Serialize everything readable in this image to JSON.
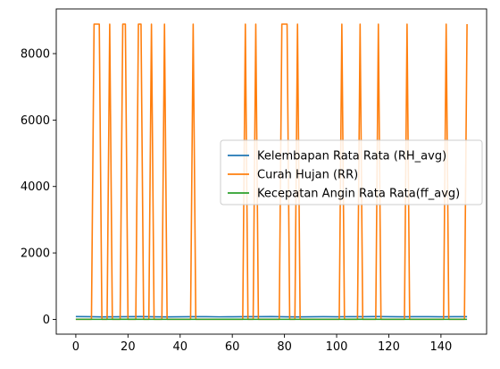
{
  "chart_data": {
    "type": "line",
    "xlim": [
      -7.5,
      157.5
    ],
    "ylim": [
      -445,
      9345
    ],
    "x_ticks": [
      0,
      20,
      40,
      60,
      80,
      100,
      120,
      140
    ],
    "y_ticks": [
      0,
      2000,
      4000,
      6000,
      8000
    ],
    "grid": false,
    "legend_placement": "center-right",
    "series": [
      {
        "name": "Kelembapan Rata Rata  (RH_avg)",
        "color": "#1f77b4",
        "x": [
          0,
          5,
          10,
          15,
          20,
          25,
          30,
          35,
          40,
          45,
          50,
          55,
          60,
          65,
          70,
          75,
          80,
          85,
          90,
          95,
          100,
          105,
          110,
          115,
          120,
          125,
          130,
          135,
          140,
          145,
          150
        ],
        "y": [
          85,
          82,
          75,
          78,
          80,
          84,
          77,
          74,
          78,
          82,
          80,
          76,
          78,
          82,
          80,
          84,
          78,
          75,
          77,
          80,
          78,
          82,
          80,
          84,
          80,
          78,
          82,
          80,
          78,
          80,
          82
        ]
      },
      {
        "name": "Curah Hujan (RR)",
        "color": "#ff7f0e",
        "x": [
          0,
          1,
          2,
          3,
          4,
          5,
          6,
          7,
          8,
          9,
          10,
          11,
          12,
          13,
          14,
          15,
          16,
          17,
          18,
          19,
          20,
          21,
          22,
          23,
          24,
          25,
          26,
          27,
          28,
          29,
          30,
          31,
          32,
          33,
          34,
          35,
          36,
          37,
          38,
          39,
          40,
          41,
          42,
          43,
          44,
          45,
          46,
          47,
          48,
          49,
          50,
          51,
          52,
          53,
          54,
          55,
          56,
          57,
          58,
          59,
          60,
          61,
          62,
          63,
          64,
          65,
          66,
          67,
          68,
          69,
          70,
          71,
          72,
          73,
          74,
          75,
          76,
          77,
          78,
          79,
          80,
          81,
          82,
          83,
          84,
          85,
          86,
          87,
          88,
          89,
          90,
          91,
          92,
          93,
          94,
          95,
          96,
          97,
          98,
          99,
          100,
          101,
          102,
          103,
          104,
          105,
          106,
          107,
          108,
          109,
          110,
          111,
          112,
          113,
          114,
          115,
          116,
          117,
          118,
          119,
          120,
          121,
          122,
          123,
          124,
          125,
          126,
          127,
          128,
          129,
          130,
          131,
          132,
          133,
          134,
          135,
          136,
          137,
          138,
          139,
          140,
          141,
          142,
          143,
          144,
          145,
          146,
          147,
          148,
          149,
          150
        ],
        "y": [
          5,
          5,
          5,
          5,
          5,
          5,
          5,
          8888,
          8888,
          8888,
          5,
          5,
          5,
          8888,
          5,
          5,
          5,
          5,
          8888,
          8888,
          5,
          5,
          5,
          5,
          8888,
          8888,
          5,
          5,
          5,
          8888,
          5,
          5,
          5,
          5,
          8888,
          5,
          5,
          5,
          5,
          5,
          5,
          5,
          5,
          5,
          5,
          8888,
          5,
          5,
          5,
          5,
          5,
          5,
          5,
          5,
          5,
          5,
          5,
          5,
          5,
          5,
          5,
          5,
          5,
          5,
          5,
          8888,
          5,
          5,
          5,
          8888,
          5,
          5,
          5,
          5,
          5,
          5,
          5,
          5,
          5,
          8888,
          8888,
          8888,
          5,
          5,
          5,
          8888,
          5,
          5,
          5,
          5,
          5,
          5,
          5,
          5,
          5,
          5,
          5,
          5,
          5,
          5,
          5,
          5,
          8888,
          5,
          5,
          5,
          5,
          5,
          5,
          8888,
          5,
          5,
          5,
          5,
          5,
          5,
          8888,
          5,
          5,
          5,
          5,
          5,
          5,
          5,
          5,
          5,
          5,
          8888,
          5,
          5,
          5,
          5,
          5,
          5,
          5,
          5,
          5,
          5,
          5,
          5,
          5,
          5,
          8888,
          5,
          5,
          5,
          5,
          5,
          5,
          5,
          8888
        ]
      },
      {
        "name": "Kecepatan Angin Rata Rata(ff_avg)",
        "color": "#2ca02c",
        "x": [
          0,
          10,
          20,
          30,
          40,
          50,
          60,
          70,
          80,
          90,
          100,
          110,
          120,
          130,
          140,
          150
        ],
        "y": [
          2,
          2,
          3,
          2,
          2,
          2,
          3,
          2,
          2,
          2,
          2,
          3,
          2,
          2,
          2,
          2
        ]
      }
    ]
  }
}
